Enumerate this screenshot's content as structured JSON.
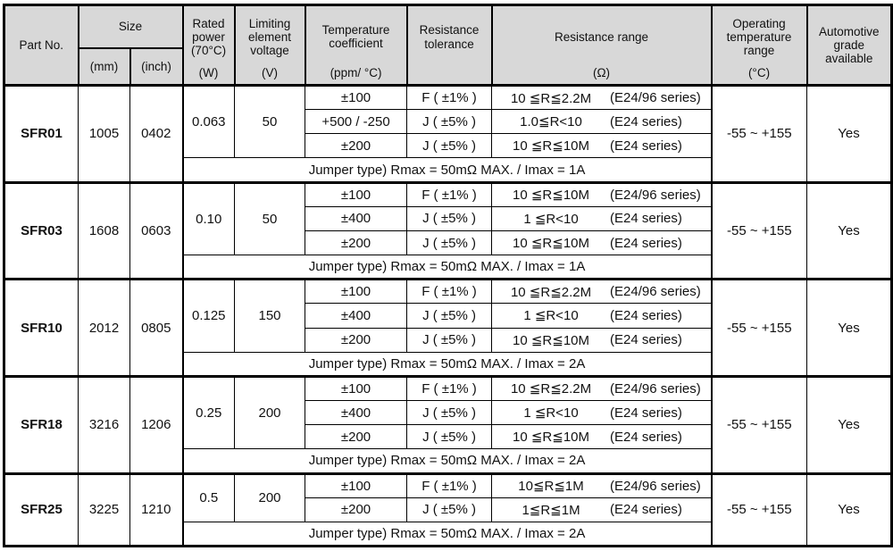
{
  "colors": {
    "header_bg": "#d8d8d8",
    "border": "#000000",
    "text": "#111111"
  },
  "header": {
    "part_no": "Part No.",
    "size": "Size",
    "size_mm": "(mm)",
    "size_inch": "(inch)",
    "rated_power": "Rated\npower\n(70°C)",
    "rated_power_unit": "(W)",
    "limiting_voltage": "Limiting\nelement\nvoltage",
    "limiting_voltage_unit": "(V)",
    "temp_coeff": "Temperature\ncoefficient",
    "temp_coeff_unit": "(ppm/ °C)",
    "tolerance": "Resistance\ntolerance",
    "tolerance_unit": "",
    "range": "Resistance range",
    "range_unit": "(Ω)",
    "op_temp": "Operating\ntemperature\nrange",
    "op_temp_unit": "(°C)",
    "auto": "Automotive\ngrade\navailable"
  },
  "groups": [
    {
      "part": "SFR01",
      "mm": "1005",
      "inch": "0402",
      "power": "0.063",
      "voltage": "50",
      "rows": [
        {
          "tc": "±100",
          "tol": "F ( ±1% )",
          "range": "10 ≦R≦2.2M",
          "series": "(E24/96 series)"
        },
        {
          "tc": "+500 / -250",
          "tol": "J ( ±5% )",
          "range": "1.0≦R<10",
          "series": "(E24 series)"
        },
        {
          "tc": "±200",
          "tol": "J ( ±5% )",
          "range": "10 ≦R≦10M",
          "series": "(E24 series)"
        }
      ],
      "jumper": "Jumper type) Rmax = 50mΩ MAX. / Imax = 1A",
      "op_temp": "-55 ~ +155",
      "auto": "Yes"
    },
    {
      "part": "SFR03",
      "mm": "1608",
      "inch": "0603",
      "power": "0.10",
      "voltage": "50",
      "rows": [
        {
          "tc": "±100",
          "tol": "F ( ±1% )",
          "range": "10 ≦R≦10M",
          "series": "(E24/96 series)"
        },
        {
          "tc": "±400",
          "tol": "J ( ±5% )",
          "range": "1 ≦R<10",
          "series": "(E24 series)"
        },
        {
          "tc": "±200",
          "tol": "J ( ±5% )",
          "range": "10 ≦R≦10M",
          "series": "(E24 series)"
        }
      ],
      "jumper": "Jumper type) Rmax = 50mΩ MAX. / Imax = 1A",
      "op_temp": "-55 ~ +155",
      "auto": "Yes"
    },
    {
      "part": "SFR10",
      "mm": "2012",
      "inch": "0805",
      "power": "0.125",
      "voltage": "150",
      "rows": [
        {
          "tc": "±100",
          "tol": "F ( ±1% )",
          "range": "10 ≦R≦2.2M",
          "series": "(E24/96 series)"
        },
        {
          "tc": "±400",
          "tol": "J ( ±5% )",
          "range": "1 ≦R<10",
          "series": "(E24 series)"
        },
        {
          "tc": "±200",
          "tol": "J ( ±5% )",
          "range": "10 ≦R≦10M",
          "series": "(E24 series)"
        }
      ],
      "jumper": "Jumper type) Rmax = 50mΩ MAX. / Imax = 2A",
      "op_temp": "-55 ~ +155",
      "auto": "Yes"
    },
    {
      "part": "SFR18",
      "mm": "3216",
      "inch": "1206",
      "power": "0.25",
      "voltage": "200",
      "rows": [
        {
          "tc": "±100",
          "tol": "F ( ±1% )",
          "range": "10 ≦R≦2.2M",
          "series": "(E24/96 series)"
        },
        {
          "tc": "±400",
          "tol": "J ( ±5% )",
          "range": "1 ≦R<10",
          "series": "(E24 series)"
        },
        {
          "tc": "±200",
          "tol": "J ( ±5% )",
          "range": "10 ≦R≦10M",
          "series": "(E24 series)"
        }
      ],
      "jumper": "Jumper type) Rmax = 50mΩ MAX. / Imax = 2A",
      "op_temp": "-55 ~ +155",
      "auto": "Yes"
    },
    {
      "part": "SFR25",
      "mm": "3225",
      "inch": "1210",
      "power": "0.5",
      "voltage": "200",
      "rows": [
        {
          "tc": "±100",
          "tol": "F ( ±1% )",
          "range": "10≦R≦1M",
          "series": "(E24/96 series)"
        },
        {
          "tc": "±200",
          "tol": "J ( ±5% )",
          "range": "1≦R≦1M",
          "series": "(E24 series)"
        }
      ],
      "jumper": "Jumper type) Rmax = 50mΩ MAX. / Imax = 2A",
      "op_temp": "-55 ~ +155",
      "auto": "Yes"
    }
  ]
}
